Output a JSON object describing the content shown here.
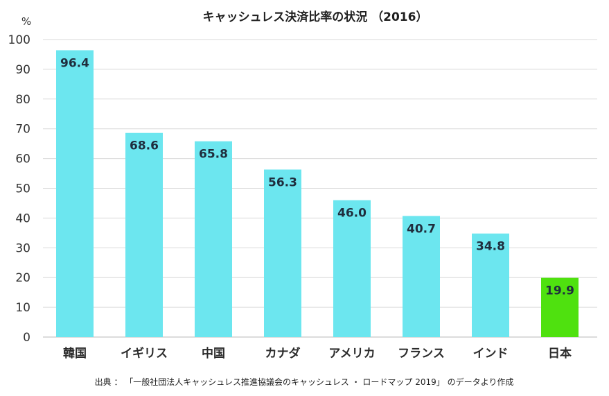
{
  "chart_data": {
    "type": "bar",
    "title": "キャッシュレス決済比率の状況 （2016）",
    "ylabel": "%",
    "ylim": [
      0,
      100
    ],
    "yticks": [
      0,
      10,
      20,
      30,
      40,
      50,
      60,
      70,
      80,
      90,
      100
    ],
    "categories": [
      "韓国",
      "イギリス",
      "中国",
      "カナダ",
      "アメリカ",
      "フランス",
      "インド",
      "日本"
    ],
    "values": [
      96.4,
      68.6,
      65.8,
      56.3,
      46.0,
      40.7,
      34.8,
      19.9
    ],
    "value_labels": [
      "96.4",
      "68.6",
      "65.8",
      "56.3",
      "46.0",
      "40.7",
      "34.8",
      "19.9"
    ],
    "bar_colors": [
      "#6ce6ef",
      "#6ce6ef",
      "#6ce6ef",
      "#6ce6ef",
      "#6ce6ef",
      "#6ce6ef",
      "#6ce6ef",
      "#4fe10f"
    ],
    "category_colors": [
      "#2b2b2b",
      "#2b2b2b",
      "#2b2b2b",
      "#2b2b2b",
      "#2b2b2b",
      "#2b2b2b",
      "#2b2b2b",
      "#4fe10f"
    ],
    "value_label_colors": [
      "#1f2d3d",
      "#1f2d3d",
      "#1f2d3d",
      "#1f2d3d",
      "#1f2d3d",
      "#1f2d3d",
      "#1f2d3d",
      "#1f2d3d"
    ],
    "grid": true,
    "source": "出典 ： 「一般社団法人キャッシュレス推進協議会のキャッシュレス ・ ロードマップ 2019」 のデータより作成"
  }
}
